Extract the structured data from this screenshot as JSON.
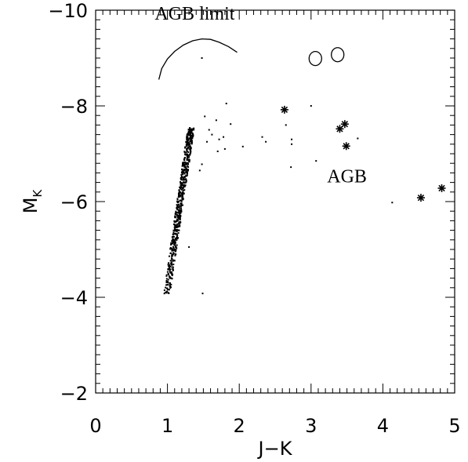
{
  "chart_data": {
    "type": "scatter",
    "title": "",
    "xlabel": "J−K",
    "ylabel": {
      "main": "M",
      "sub": "K"
    },
    "xlim": [
      0,
      5
    ],
    "ylim": [
      -10,
      -2
    ],
    "y_inverted": true,
    "grid": false,
    "x_major_ticks": [
      0,
      1,
      2,
      3,
      4,
      5
    ],
    "x_tick_labels": [
      "0",
      "1",
      "2",
      "3",
      "4",
      "5"
    ],
    "y_major_ticks": [
      -10,
      -8,
      -6,
      -4,
      -2
    ],
    "y_tick_labels": [
      "−10",
      "−8",
      "−6",
      "−4",
      "−2"
    ],
    "annotations": [
      {
        "text": "AGB limit",
        "x": 1.38,
        "y": -9.8
      },
      {
        "text": "AGB",
        "x": 3.5,
        "y": -6.4
      }
    ],
    "agb_limit_curve": [
      [
        0.88,
        -8.55
      ],
      [
        0.92,
        -8.78
      ],
      [
        1.0,
        -8.98
      ],
      [
        1.1,
        -9.14
      ],
      [
        1.22,
        -9.27
      ],
      [
        1.35,
        -9.36
      ],
      [
        1.48,
        -9.4
      ],
      [
        1.6,
        -9.39
      ],
      [
        1.72,
        -9.33
      ],
      [
        1.85,
        -9.24
      ],
      [
        1.97,
        -9.12
      ]
    ],
    "open_circles": [
      [
        3.06,
        -8.99
      ],
      [
        3.37,
        -9.07
      ]
    ],
    "asterisk_points": [
      [
        2.63,
        -7.92
      ],
      [
        3.4,
        -7.52
      ],
      [
        3.47,
        -7.62
      ],
      [
        3.49,
        -7.16
      ],
      [
        4.53,
        -6.08
      ],
      [
        4.82,
        -6.28
      ]
    ],
    "scattered_points": [
      [
        1.48,
        -9.0
      ],
      [
        1.52,
        -7.78
      ],
      [
        1.68,
        -7.7
      ],
      [
        1.82,
        -8.05
      ],
      [
        1.88,
        -7.62
      ],
      [
        1.58,
        -7.5
      ],
      [
        1.62,
        -7.4
      ],
      [
        1.72,
        -7.3
      ],
      [
        1.78,
        -7.35
      ],
      [
        1.55,
        -7.25
      ],
      [
        2.05,
        -7.15
      ],
      [
        1.8,
        -7.1
      ],
      [
        1.7,
        -7.05
      ],
      [
        2.32,
        -7.35
      ],
      [
        2.37,
        -7.25
      ],
      [
        2.65,
        -7.6
      ],
      [
        2.73,
        -7.3
      ],
      [
        2.73,
        -7.2
      ],
      [
        3.0,
        -8.0
      ],
      [
        2.72,
        -6.72
      ],
      [
        3.07,
        -6.85
      ],
      [
        3.65,
        -7.32
      ],
      [
        4.13,
        -5.98
      ],
      [
        1.48,
        -6.78
      ],
      [
        1.45,
        -6.65
      ],
      [
        1.49,
        -4.08
      ],
      [
        1.3,
        -5.05
      ]
    ],
    "red_giant_branch": {
      "description": "dense vertical sequence of dots",
      "base": [
        0.99,
        -4.05
      ],
      "top": [
        1.33,
        -7.55
      ],
      "count": 600,
      "spread": 0.045
    }
  }
}
